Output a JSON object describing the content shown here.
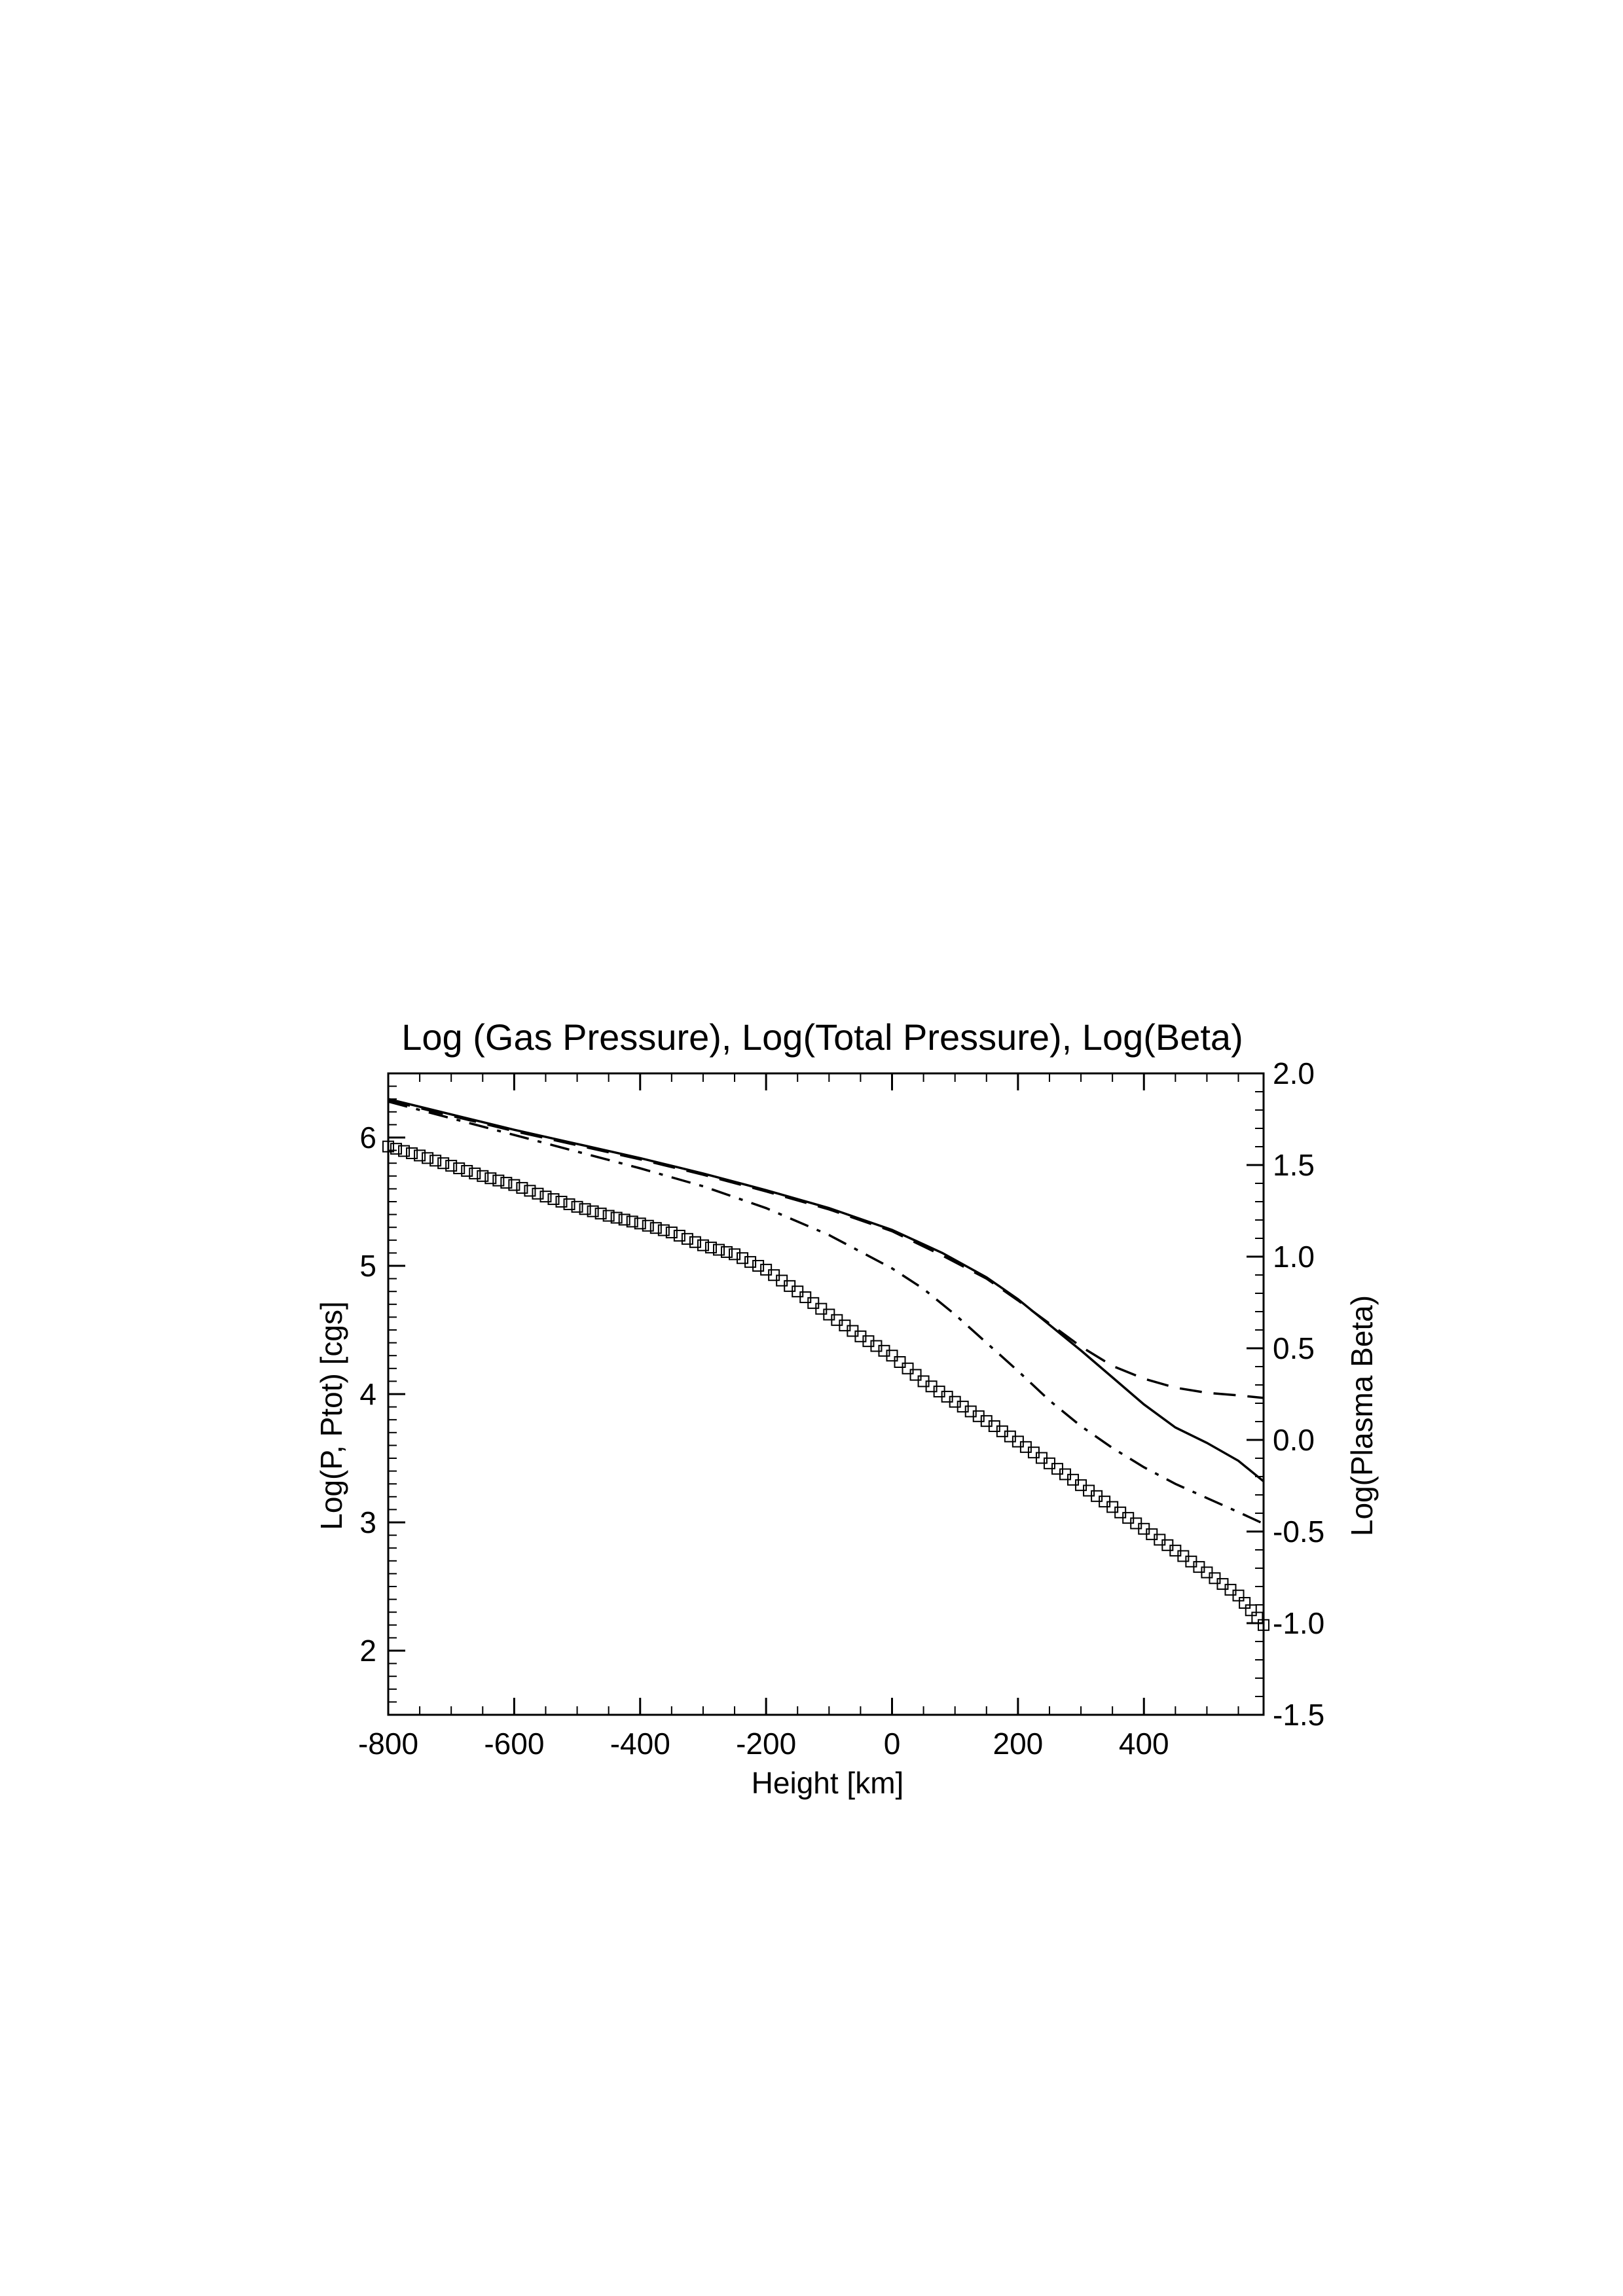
{
  "chart_data": {
    "type": "line",
    "title": "Log (Gas Pressure), Log(Total Pressure), Log(Beta)",
    "xlabel": "Height [km]",
    "ylabel": "Log(P, Ptot) [cgs]",
    "y2label": "Log(Plasma Beta)",
    "xlim": [
      -800,
      590
    ],
    "ylim": [
      1.5,
      6.5
    ],
    "y2lim": [
      -1.5,
      2.0
    ],
    "x_ticks": [
      -800,
      -600,
      -400,
      -200,
      0,
      200,
      400
    ],
    "x_tick_labels": [
      "-800",
      "-600",
      "-400",
      "-200",
      "0",
      "200",
      "400"
    ],
    "y_ticks": [
      2,
      3,
      4,
      5,
      6
    ],
    "y_tick_labels": [
      "2",
      "3",
      "4",
      "5",
      "6"
    ],
    "y2_ticks": [
      -1.5,
      -1.0,
      -0.5,
      0.0,
      0.5,
      1.0,
      1.5,
      2.0
    ],
    "y2_tick_labels": [
      "-1.5",
      "-1.0",
      "-0.5",
      "0.0",
      "0.5",
      "1.0",
      "1.5",
      "2.0"
    ],
    "grid": false,
    "legend": "none",
    "series": [
      {
        "style": "solid",
        "axis": "left",
        "x": [
          -800,
          -700,
          -600,
          -500,
          -400,
          -300,
          -200,
          -100,
          0,
          80,
          150,
          200,
          250,
          300,
          350,
          400,
          450,
          500,
          550,
          590
        ],
        "y": [
          6.3,
          6.18,
          6.06,
          5.95,
          5.84,
          5.72,
          5.59,
          5.45,
          5.28,
          5.1,
          4.91,
          4.74,
          4.54,
          4.34,
          4.13,
          3.92,
          3.74,
          3.62,
          3.48,
          3.32
        ]
      },
      {
        "style": "dashed",
        "axis": "left",
        "x": [
          -800,
          -700,
          -600,
          -500,
          -400,
          -300,
          -200,
          -100,
          0,
          80,
          150,
          200,
          250,
          300,
          350,
          400,
          450,
          500,
          550,
          590
        ],
        "y": [
          6.29,
          6.17,
          6.05,
          5.94,
          5.83,
          5.71,
          5.58,
          5.44,
          5.27,
          5.08,
          4.9,
          4.73,
          4.55,
          4.37,
          4.22,
          4.12,
          4.05,
          4.01,
          3.99,
          3.97
        ]
      },
      {
        "style": "dash-dot",
        "axis": "left",
        "x": [
          -800,
          -700,
          -600,
          -500,
          -400,
          -300,
          -200,
          -100,
          0,
          50,
          100,
          150,
          200,
          250,
          300,
          350,
          400,
          450,
          500,
          550,
          590
        ],
        "y": [
          6.28,
          6.15,
          6.02,
          5.89,
          5.76,
          5.62,
          5.45,
          5.24,
          4.98,
          4.82,
          4.62,
          4.4,
          4.18,
          3.95,
          3.75,
          3.58,
          3.43,
          3.3,
          3.19,
          3.08,
          2.99
        ]
      },
      {
        "style": "markers",
        "axis": "left",
        "x": [
          -800,
          -750,
          -700,
          -650,
          -600,
          -550,
          -500,
          -450,
          -400,
          -350,
          -300,
          -250,
          -200,
          -150,
          -100,
          -50,
          0,
          50,
          100,
          150,
          200,
          250,
          300,
          350,
          400,
          450,
          500,
          550,
          590
        ],
        "y": [
          5.93,
          5.86,
          5.78,
          5.7,
          5.63,
          5.54,
          5.46,
          5.39,
          5.33,
          5.26,
          5.16,
          5.09,
          4.97,
          4.8,
          4.62,
          4.45,
          4.3,
          4.1,
          3.94,
          3.79,
          3.63,
          3.46,
          3.29,
          3.12,
          2.95,
          2.78,
          2.61,
          2.43,
          2.2
        ]
      }
    ]
  }
}
